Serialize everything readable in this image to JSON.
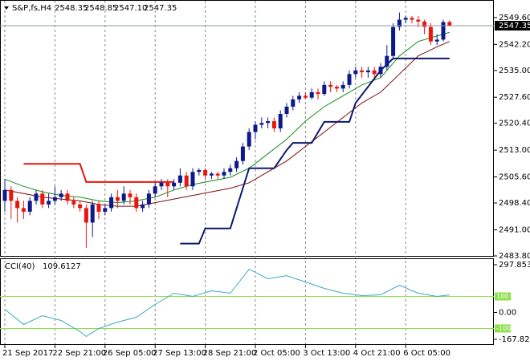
{
  "chart_data": [
    {
      "type": "candlestick",
      "title": "S&P,fs,H4",
      "title_values": [
        "2548.35",
        "2548.85",
        "2547.10",
        "2547.35"
      ],
      "categories": [
        "21 Sep 2017",
        null,
        null,
        null,
        null,
        null,
        null,
        null,
        "22 Sep 21:00",
        null,
        null,
        null,
        null,
        null,
        null,
        null,
        "26 Sep 05:00",
        null,
        null,
        null,
        null,
        null,
        null,
        null,
        "27 Sep 13:00",
        null,
        null,
        null,
        null,
        null,
        null,
        null,
        "28 Sep 21:00",
        null,
        null,
        null,
        null,
        null,
        null,
        null,
        "2 Oct 05:00",
        null,
        null,
        null,
        null,
        null,
        null,
        null,
        "3 Oct 13:00",
        null,
        null,
        null,
        null,
        null,
        null,
        null,
        "4 Oct 21:00",
        null,
        null,
        null,
        null,
        null,
        null,
        null,
        "6 Oct 05:00",
        null,
        null,
        null,
        null,
        null,
        null,
        null
      ],
      "open": [
        2499,
        2502,
        2499,
        2497,
        2496,
        2499,
        2501,
        2498,
        2499,
        2500,
        2501,
        2499,
        2498,
        2497,
        2493,
        2498,
        2496,
        2497,
        2500,
        2499,
        2501,
        2500,
        2497,
        2498,
        2501,
        2503,
        2504,
        2503,
        2504,
        2506,
        2503,
        2507,
        2507.5,
        2506,
        2506.5,
        2506,
        2507,
        2508,
        2510,
        2514,
        2518,
        2520,
        2520.5,
        2521,
        2519,
        2523,
        2525,
        2527,
        2528,
        2527.5,
        2529,
        2528.5,
        2531,
        2530.5,
        2530,
        2531,
        2534,
        2535,
        2534.5,
        2535,
        2534,
        2536,
        2539,
        2547,
        2549,
        2549.5,
        2549,
        2548.5,
        2547,
        2543,
        2543.5,
        2548.35
      ],
      "high": [
        2505,
        2503,
        2500,
        2499,
        2500,
        2502,
        2502,
        2501,
        2503,
        2502,
        2502,
        2500,
        2499,
        2498,
        2499,
        2499,
        2498,
        2501,
        2502,
        2503,
        2502,
        2501,
        2499,
        2502,
        2504,
        2505,
        2505,
        2505,
        2508,
        2507,
        2508,
        2508,
        2508,
        2507,
        2507,
        2508,
        2509,
        2511,
        2515,
        2519,
        2521,
        2522,
        2522,
        2522,
        2524,
        2526,
        2528,
        2529,
        2529,
        2530,
        2530,
        2532,
        2532,
        2531,
        2532,
        2535,
        2536,
        2536,
        2536,
        2536,
        2537,
        2542,
        2548,
        2551,
        2550,
        2550,
        2550,
        2549,
        2548,
        2545,
        2549,
        2548.85
      ],
      "low": [
        2496,
        2494,
        2493,
        2494,
        2495,
        2498,
        2497,
        2497,
        2498,
        2499,
        2498,
        2497,
        2496,
        2486,
        2489,
        2494,
        2495,
        2496,
        2497,
        2498,
        2498,
        2496,
        2496,
        2497,
        2500,
        2502,
        2500,
        2502,
        2503,
        2502,
        2502,
        2506,
        2505,
        2505,
        2505,
        2505,
        2506,
        2507,
        2509,
        2513,
        2516,
        2519,
        2519,
        2518,
        2518,
        2522,
        2524,
        2526,
        2527,
        2527,
        2527,
        2528,
        2529,
        2529,
        2529,
        2530,
        2533,
        2533,
        2533,
        2533,
        2533,
        2535,
        2538,
        2546,
        2548,
        2548,
        2547,
        2545,
        2542,
        2542,
        2543,
        2547.1
      ],
      "close": [
        2502,
        2499,
        2497,
        2496,
        2499,
        2501,
        2498,
        2499,
        2500,
        2501,
        2499,
        2498,
        2497,
        2493,
        2498,
        2496,
        2497,
        2500,
        2499,
        2501,
        2500,
        2497,
        2498,
        2501,
        2503,
        2504,
        2503,
        2504,
        2506,
        2503,
        2507,
        2507.5,
        2506,
        2506.5,
        2506,
        2507,
        2508,
        2510,
        2514,
        2518,
        2520,
        2520.5,
        2521,
        2519,
        2523,
        2525,
        2527,
        2528,
        2527.5,
        2529,
        2528.5,
        2531,
        2530.5,
        2530,
        2531,
        2534,
        2535,
        2534.5,
        2535,
        2534,
        2536,
        2539,
        2547,
        2549,
        2549.5,
        2549,
        2548.5,
        2547,
        2543,
        2543.5,
        2548.35,
        2547.35
      ],
      "up_color": "#0c1a8a",
      "down_color": "#e8160c",
      "ylim": [
        2483.8,
        2554.0
      ],
      "yticks": [
        {
          "value": 2549.6,
          "label": "2549.60"
        },
        {
          "value": 2542.2,
          "label": "2542.20"
        },
        {
          "value": 2535.0,
          "label": "2535.00"
        },
        {
          "value": 2527.6,
          "label": "2527.60"
        },
        {
          "value": 2520.4,
          "label": "2520.40"
        },
        {
          "value": 2513.0,
          "label": "2513.00"
        },
        {
          "value": 2505.6,
          "label": "2505.60"
        },
        {
          "value": 2498.4,
          "label": "2498.40"
        },
        {
          "value": 2491.0,
          "label": "2491.00"
        },
        {
          "value": 2483.8,
          "label": "2483.80"
        }
      ],
      "last_price_label": "2547.35",
      "lines": [
        {
          "color": "#1a8a1a",
          "x": [
            0,
            3,
            6,
            9,
            12,
            15,
            18,
            21,
            24,
            27,
            30,
            33,
            36,
            39,
            42,
            45,
            48,
            51,
            54,
            57,
            60,
            63,
            66,
            69,
            71
          ],
          "values": [
            2505,
            2503,
            2501.5,
            2500.5,
            2500,
            2499,
            2498.5,
            2499,
            2500,
            2502,
            2503.5,
            2504.5,
            2505.5,
            2508,
            2512,
            2516,
            2521,
            2525,
            2528,
            2531,
            2533,
            2539,
            2543,
            2544.5,
            2545.5
          ]
        },
        {
          "color": "#7a0c0c",
          "x": [
            0,
            3,
            6,
            9,
            12,
            15,
            18,
            21,
            24,
            27,
            30,
            33,
            36,
            39,
            42,
            45,
            48,
            51,
            54,
            57,
            60,
            63,
            66,
            69,
            71
          ],
          "values": [
            2502,
            2501,
            2500,
            2499.5,
            2499,
            2498,
            2497.5,
            2497.5,
            2498.5,
            2499.5,
            2500.5,
            2501.5,
            2502.5,
            2504,
            2507,
            2510,
            2514,
            2518,
            2522,
            2526,
            2529,
            2534,
            2539,
            2541.5,
            2543
          ]
        },
        {
          "color": "#e8160c",
          "x": [
            3,
            12,
            13,
            27
          ],
          "values": [
            2509.2,
            2509.2,
            2504.2,
            2504.2
          ]
        },
        {
          "color": "#0c1a6e",
          "x": [
            28,
            31,
            32,
            36,
            39,
            43,
            45,
            46,
            49,
            51,
            55,
            56,
            60,
            62,
            71
          ],
          "values": [
            2487.2,
            2487.2,
            2491.4,
            2491.4,
            2508,
            2508,
            2513,
            2515,
            2515,
            2520.8,
            2520.8,
            2526,
            2535,
            2538.3,
            2538.3
          ]
        }
      ]
    },
    {
      "type": "line",
      "title": "CCI(40)",
      "color": "#3aa8c0",
      "x": [
        0,
        3,
        6,
        9,
        12,
        13,
        15,
        18,
        21,
        24,
        27,
        30,
        33,
        36,
        39,
        42,
        45,
        48,
        51,
        54,
        57,
        60,
        63,
        66,
        69,
        71
      ],
      "values": [
        20,
        -75,
        -20,
        -50,
        -120,
        -150,
        -100,
        -60,
        -30,
        50,
        120,
        100,
        135,
        120,
        270,
        210,
        230,
        190,
        150,
        120,
        105,
        110,
        170,
        120,
        100,
        109.6127
      ],
      "ylim": [
        -167.8282,
        297.8539
      ],
      "yticks": [
        297.8539,
        {
          "value": 0,
          "label": "0.00"
        },
        -167.8282
      ],
      "levels": [
        100,
        -100
      ],
      "level_color": "#8ce04a"
    }
  ]
}
